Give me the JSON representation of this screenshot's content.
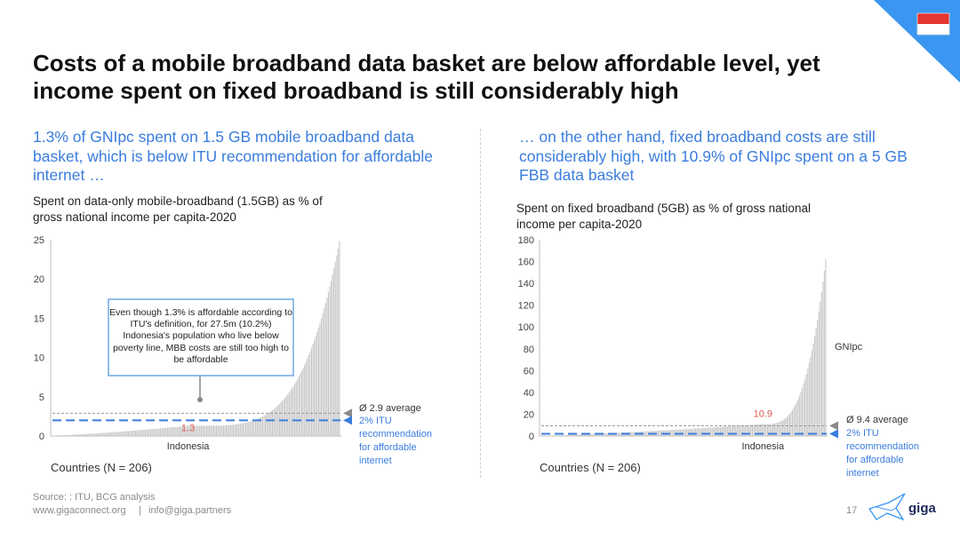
{
  "title": "Costs of a mobile broadband data basket are below affordable level, yet income spent on fixed broadband is still considerably high",
  "colors": {
    "accent": "#3b7ddd",
    "bar": "#c7c7c7",
    "indonesia_label": "#e0574f",
    "corner": "#3a96f0"
  },
  "left": {
    "subtitle": "1.3% of GNIpc spent on 1.5 GB mobile broadband data basket, which is below ITU recommendation for affordable internet …",
    "chart_title": "Spent on data-only mobile-broadband (1.5GB) as % of gross national income per capita-2020",
    "callout": "Even though 1.3% is affordable according to ITU's definition, for 27.5m (10.2%) Indonesia's population who live below poverty line, MBB costs are still too high to be affordable",
    "countries_label": "Countries (N = 206)",
    "avg_label": "Ø 2.9 average",
    "itu_label": [
      "2% ITU",
      "recommendation",
      "for affordable",
      "internet"
    ]
  },
  "right": {
    "subtitle": "… on the other hand, fixed broadband costs are still considerably high, with 10.9% of GNIpc spent on a 5 GB FBB data basket",
    "chart_title": "Spent on fixed broadband (5GB) as % of gross national income per capita-2020",
    "countries_label": "Countries (N = 206)",
    "avg_label": "Ø 9.4 average",
    "itu_label": [
      "2% ITU",
      "recommendation",
      "for affordable",
      "internet"
    ],
    "gnipc_label": "GNIpc"
  },
  "chart_data": [
    {
      "type": "bar",
      "title": "Spent on data-only mobile-broadband (1.5GB) as % of gross national income per capita-2020",
      "ylim": [
        0,
        25
      ],
      "yticks": [
        0,
        5,
        10,
        15,
        20,
        25
      ],
      "n": 206,
      "sorted": "ascending",
      "min": 0.05,
      "max": 24.8,
      "average": 2.9,
      "itu_threshold": 2,
      "highlight": {
        "label": "Indonesia",
        "value": 1.3,
        "value_label": "1.3"
      }
    },
    {
      "type": "bar",
      "title": "Spent on fixed broadband (5GB) as % of gross national income per capita-2020",
      "ylim": [
        0,
        180
      ],
      "yticks": [
        0,
        20,
        40,
        60,
        80,
        100,
        120,
        140,
        160,
        180
      ],
      "n": 206,
      "sorted": "ascending",
      "min": 0.3,
      "max": 162,
      "average": 9.4,
      "itu_threshold": 2,
      "highlight": {
        "label": "Indonesia",
        "value": 10.9,
        "value_label": "10.9"
      }
    }
  ],
  "footer": {
    "source": "Source: : ITU, BCG analysis",
    "url": "www.gigaconnect.org",
    "separator": "|",
    "email": "info@giga.partners",
    "page": "17",
    "logo": "giga"
  }
}
